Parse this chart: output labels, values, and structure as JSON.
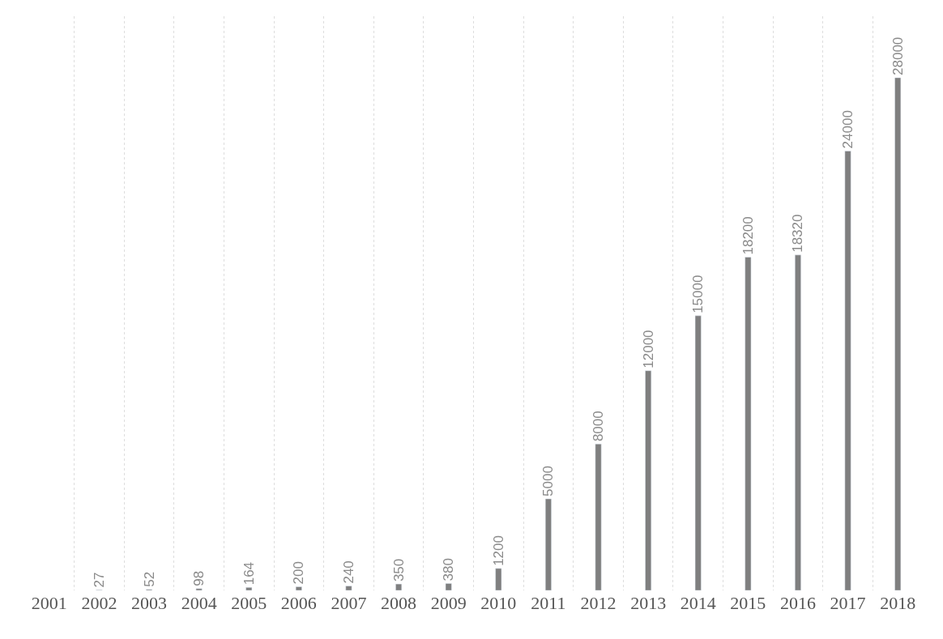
{
  "chart_data": {
    "type": "bar",
    "categories": [
      "2001",
      "2002",
      "2003",
      "2004",
      "2005",
      "2006",
      "2007",
      "2008",
      "2009",
      "2010",
      "2011",
      "2012",
      "2013",
      "2014",
      "2015",
      "2016",
      "2017",
      "2018"
    ],
    "values": [
      null,
      27,
      52,
      98,
      164,
      200,
      240,
      350,
      380,
      1200,
      5000,
      8000,
      12000,
      15000,
      18200,
      18320,
      24000,
      28000
    ],
    "color": "#7f7f7f",
    "data_labels": true,
    "grid": "x",
    "tick_labels": "x",
    "legend": false
  }
}
